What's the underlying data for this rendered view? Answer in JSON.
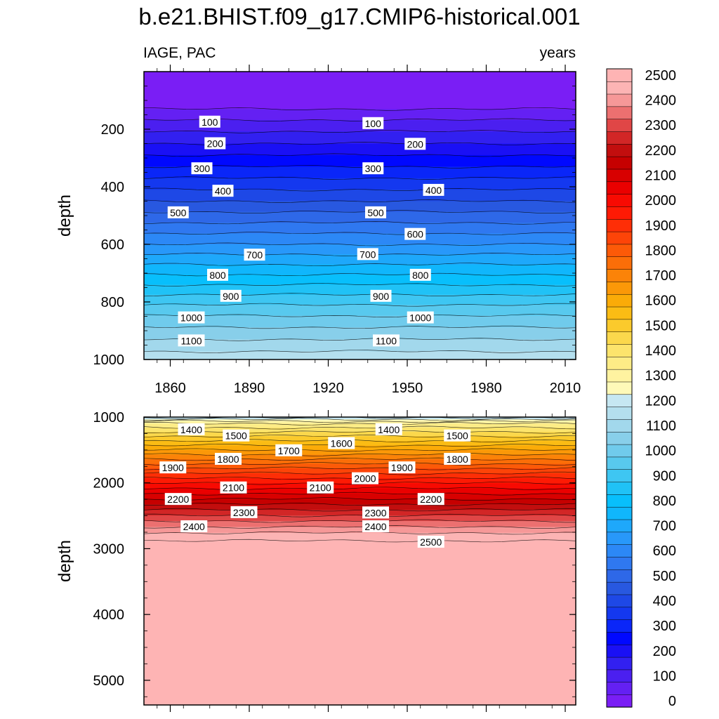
{
  "figure": {
    "title": "b.e21.BHIST.f09_g17.CMIP6-historical.001",
    "left_string": "IAGE, PAC",
    "right_string": "years"
  },
  "chart_data": {
    "type": "contour",
    "variable": "IAGE",
    "region": "PAC",
    "units": "years",
    "x": {
      "range": [
        1850,
        2014
      ],
      "ticks": [
        1860,
        1890,
        1920,
        1950,
        1980,
        2010
      ],
      "tick_labels": [
        "1860",
        "1890",
        "1920",
        "1950",
        "1980",
        "2010"
      ]
    },
    "colorbar": {
      "levels": [
        0,
        50,
        100,
        150,
        200,
        250,
        300,
        350,
        400,
        450,
        500,
        550,
        600,
        650,
        700,
        750,
        800,
        850,
        900,
        950,
        1000,
        1050,
        1100,
        1150,
        1200,
        1250,
        1300,
        1350,
        1400,
        1450,
        1500,
        1550,
        1600,
        1650,
        1700,
        1750,
        1800,
        1850,
        1900,
        1950,
        2000,
        2050,
        2100,
        2150,
        2200,
        2250,
        2300,
        2350,
        2400,
        2450,
        2500
      ],
      "labels": [
        "0",
        "100",
        "200",
        "300",
        "400",
        "500",
        "600",
        "700",
        "800",
        "900",
        "1000",
        "1100",
        "1200",
        "1300",
        "1400",
        "1500",
        "1600",
        "1700",
        "1800",
        "1900",
        "2000",
        "2100",
        "2200",
        "2300",
        "2400",
        "2500"
      ],
      "colors": [
        "#7a1ef5",
        "#6420f3",
        "#4b1ff0",
        "#3220f0",
        "#1a10f5",
        "#0008ff",
        "#0a26f8",
        "#1438ef",
        "#1e48e6",
        "#2858e0",
        "#2e68e8",
        "#2f78f0",
        "#2c88f6",
        "#2898fa",
        "#1ea8fb",
        "#10b6fc",
        "#08bffc",
        "#20c2f6",
        "#3ec6f2",
        "#58c9ee",
        "#70cbec",
        "#88cfea",
        "#a2d8ec",
        "#b4dfee",
        "#c6e7f2",
        "#fef9b8",
        "#fff3a0",
        "#fdec86",
        "#fce46c",
        "#fbd84c",
        "#fbca2c",
        "#fbbc14",
        "#fbab08",
        "#fb9808",
        "#fb8308",
        "#fb6e08",
        "#fc5a08",
        "#fd4408",
        "#fe2e06",
        "#fe1a04",
        "#f80a02",
        "#ea0000",
        "#d80000",
        "#c60000",
        "#c20e0e",
        "#d22626",
        "#e04646",
        "#ec7070",
        "#f69898",
        "#fcb4b4",
        "#feb4b4"
      ]
    },
    "panels": [
      {
        "name": "upper",
        "ylabel": "depth",
        "y": {
          "range": [
            0,
            1000
          ],
          "ticks": [
            200,
            400,
            600,
            800,
            1000
          ],
          "tick_labels": [
            "200",
            "400",
            "600",
            "800",
            "1000"
          ]
        },
        "contour_labels": [
          {
            "value": "100",
            "year": 1875,
            "depth": 175
          },
          {
            "value": "100",
            "year": 1937,
            "depth": 180
          },
          {
            "value": "200",
            "year": 1877,
            "depth": 250
          },
          {
            "value": "200",
            "year": 1953,
            "depth": 252
          },
          {
            "value": "300",
            "year": 1872,
            "depth": 337
          },
          {
            "value": "300",
            "year": 1937,
            "depth": 337
          },
          {
            "value": "400",
            "year": 1880,
            "depth": 415
          },
          {
            "value": "400",
            "year": 1960,
            "depth": 412
          },
          {
            "value": "500",
            "year": 1863,
            "depth": 490
          },
          {
            "value": "500",
            "year": 1938,
            "depth": 490
          },
          {
            "value": "600",
            "year": 1953,
            "depth": 565
          },
          {
            "value": "700",
            "year": 1892,
            "depth": 637
          },
          {
            "value": "700",
            "year": 1935,
            "depth": 635
          },
          {
            "value": "800",
            "year": 1878,
            "depth": 707
          },
          {
            "value": "800",
            "year": 1955,
            "depth": 707
          },
          {
            "value": "900",
            "year": 1883,
            "depth": 780
          },
          {
            "value": "900",
            "year": 1940,
            "depth": 780
          },
          {
            "value": "1000",
            "year": 1868,
            "depth": 855
          },
          {
            "value": "1000",
            "year": 1955,
            "depth": 855
          },
          {
            "value": "1100",
            "year": 1868,
            "depth": 935
          },
          {
            "value": "1100",
            "year": 1942,
            "depth": 935
          }
        ]
      },
      {
        "name": "lower",
        "ylabel": "depth",
        "y": {
          "range": [
            1000,
            5375
          ],
          "ticks": [
            1000,
            2000,
            3000,
            4000,
            5000
          ],
          "tick_labels": [
            "1000",
            "2000",
            "3000",
            "4000",
            "5000"
          ]
        },
        "contour_labels": [
          {
            "value": "1400",
            "year": 1868,
            "depth": 1190
          },
          {
            "value": "1400",
            "year": 1943,
            "depth": 1190
          },
          {
            "value": "1500",
            "year": 1885,
            "depth": 1285
          },
          {
            "value": "1500",
            "year": 1969,
            "depth": 1285
          },
          {
            "value": "1600",
            "year": 1925,
            "depth": 1400
          },
          {
            "value": "1700",
            "year": 1905,
            "depth": 1510
          },
          {
            "value": "1800",
            "year": 1882,
            "depth": 1640
          },
          {
            "value": "1800",
            "year": 1969,
            "depth": 1640
          },
          {
            "value": "1900",
            "year": 1861,
            "depth": 1770
          },
          {
            "value": "1900",
            "year": 1948,
            "depth": 1770
          },
          {
            "value": "2000",
            "year": 1934,
            "depth": 1935
          },
          {
            "value": "2100",
            "year": 1884,
            "depth": 2075
          },
          {
            "value": "2100",
            "year": 1917,
            "depth": 2075
          },
          {
            "value": "2200",
            "year": 1863,
            "depth": 2250
          },
          {
            "value": "2200",
            "year": 1959,
            "depth": 2250
          },
          {
            "value": "2300",
            "year": 1888,
            "depth": 2450
          },
          {
            "value": "2300",
            "year": 1938,
            "depth": 2455
          },
          {
            "value": "2400",
            "year": 1869,
            "depth": 2665
          },
          {
            "value": "2400",
            "year": 1938,
            "depth": 2665
          },
          {
            "value": "2500",
            "year": 1959,
            "depth": 2900
          }
        ]
      }
    ]
  }
}
